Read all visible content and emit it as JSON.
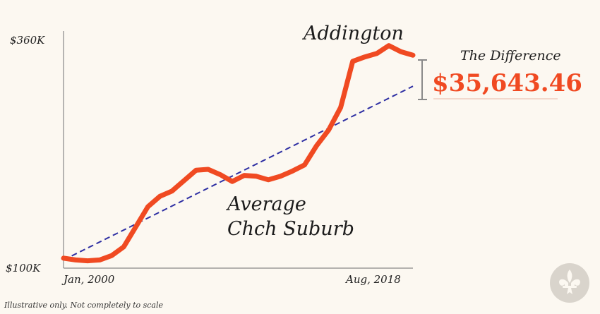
{
  "chart_data": {
    "type": "line",
    "y_range": [
      100000,
      360000
    ],
    "y_ticks": [
      "$100K",
      "$360K"
    ],
    "x_ticks": [
      "Jan, 2000",
      "Aug, 2018"
    ],
    "series": [
      {
        "name": "Addington",
        "color": "#f04a22",
        "values": [
          109000,
          107000,
          106000,
          107000,
          112000,
          122000,
          145000,
          168000,
          180000,
          186000,
          198000,
          210000,
          211000,
          205000,
          197000,
          204000,
          203000,
          199000,
          203000,
          209000,
          216000,
          238000,
          256000,
          282000,
          335000,
          340000,
          344000,
          353000,
          346000,
          342000
        ]
      },
      {
        "name": "Average Chch Suburb",
        "color": "#2e2fa3",
        "style": "dashed",
        "values": [
          107000,
          306357
        ]
      }
    ],
    "annotation": {
      "title": "The Difference",
      "value": "$35,643.46"
    }
  },
  "labels": {
    "addington": "Addington",
    "average_line1": "Average",
    "average_line2": "Chch Suburb",
    "footnote": "Illustrative only. Not completely to scale"
  },
  "logo": {
    "icon": "fleur-de-lis-icon"
  }
}
